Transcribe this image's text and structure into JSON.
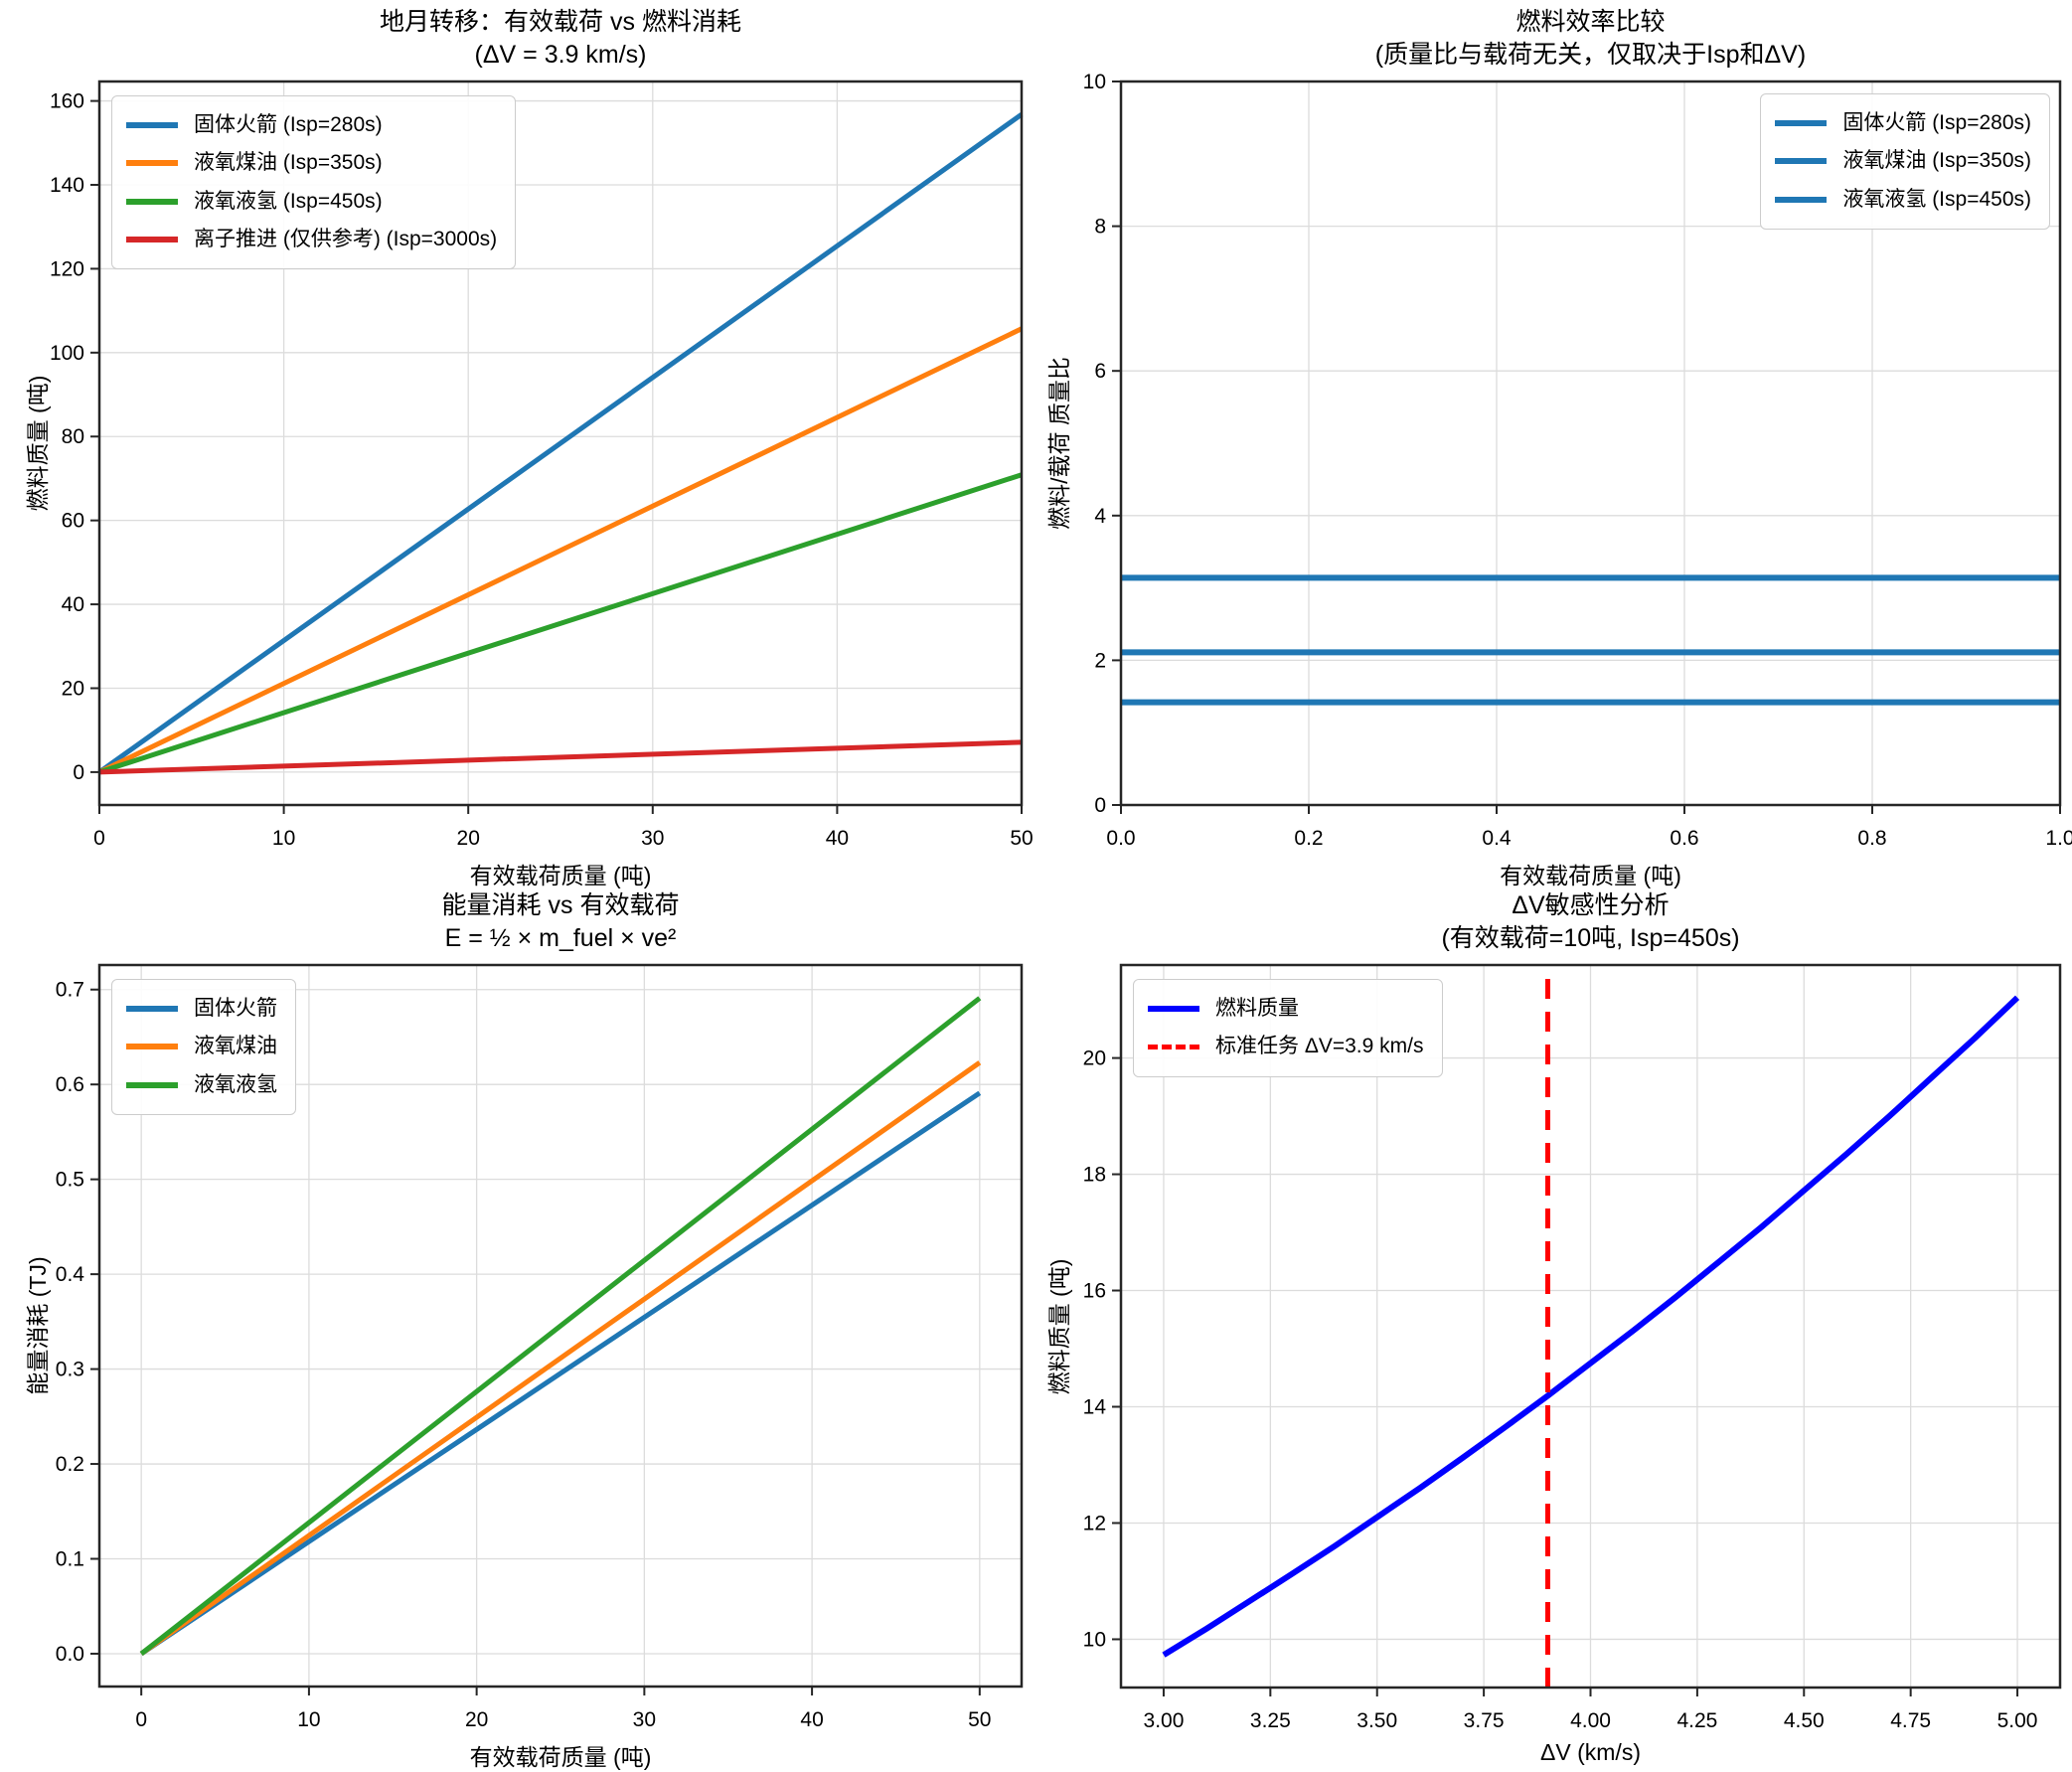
{
  "figure": {
    "background": "#ffffff",
    "grid_color": "#dcdcdc",
    "spine_color": "#262626"
  },
  "chart_data": [
    {
      "id": "payload-vs-fuel",
      "type": "line",
      "title": "地月转移：有效载荷 vs 燃料消耗",
      "subtitle": "(ΔV = 3.9 km/s)",
      "xlabel": "有效载荷质量 (吨)",
      "ylabel": "燃料质量 (吨)",
      "xlim": [
        0,
        50
      ],
      "ylim": [
        -7.84,
        164.64
      ],
      "grid": true,
      "legend_position": "top-left",
      "xticks": [
        {
          "v": 0,
          "label": "0"
        },
        {
          "v": 10,
          "label": "10"
        },
        {
          "v": 20,
          "label": "20"
        },
        {
          "v": 30,
          "label": "30"
        },
        {
          "v": 40,
          "label": "40"
        },
        {
          "v": 50,
          "label": "50"
        }
      ],
      "yticks": [
        {
          "v": 0,
          "label": "0"
        },
        {
          "v": 20,
          "label": "20"
        },
        {
          "v": 40,
          "label": "40"
        },
        {
          "v": 60,
          "label": "60"
        },
        {
          "v": 80,
          "label": "80"
        },
        {
          "v": 100,
          "label": "100"
        },
        {
          "v": 120,
          "label": "120"
        },
        {
          "v": 140,
          "label": "140"
        },
        {
          "v": 160,
          "label": "160"
        }
      ],
      "series": [
        {
          "name": "固体火箭 (Isp=280s)",
          "color": "#1f77b4",
          "lw": 5,
          "dash": false,
          "x": [
            0,
            50
          ],
          "y": [
            0,
            156.8
          ]
        },
        {
          "name": "液氧煤油 (Isp=350s)",
          "color": "#ff7f0e",
          "lw": 5,
          "dash": false,
          "x": [
            0,
            50
          ],
          "y": [
            0,
            105.7
          ]
        },
        {
          "name": "液氧液氢 (Isp=450s)",
          "color": "#2ca02c",
          "lw": 5,
          "dash": false,
          "x": [
            0,
            50
          ],
          "y": [
            0,
            70.9
          ]
        },
        {
          "name": "离子推进 (仅供参考) (Isp=3000s)",
          "color": "#d62728",
          "lw": 5,
          "dash": false,
          "x": [
            0,
            50
          ],
          "y": [
            0,
            7.1
          ]
        }
      ]
    },
    {
      "id": "fuel-efficiency-ratio",
      "type": "line",
      "title": "燃料效率比较",
      "subtitle": "(质量比与载荷无关，仅取决于Isp和ΔV)",
      "xlabel": "有效载荷质量 (吨)",
      "ylabel": "燃料/载荷 质量比",
      "xlim": [
        0,
        1
      ],
      "ylim": [
        0,
        10
      ],
      "grid": true,
      "legend_position": "top-right",
      "xticks": [
        {
          "v": 0,
          "label": "0.0"
        },
        {
          "v": 0.2,
          "label": "0.2"
        },
        {
          "v": 0.4,
          "label": "0.4"
        },
        {
          "v": 0.6,
          "label": "0.6"
        },
        {
          "v": 0.8,
          "label": "0.8"
        },
        {
          "v": 1.0,
          "label": "1.0"
        }
      ],
      "yticks": [
        {
          "v": 0,
          "label": "0"
        },
        {
          "v": 2,
          "label": "2"
        },
        {
          "v": 4,
          "label": "4"
        },
        {
          "v": 6,
          "label": "6"
        },
        {
          "v": 8,
          "label": "8"
        },
        {
          "v": 10,
          "label": "10"
        }
      ],
      "series": [
        {
          "name": "固体火箭 (Isp=280s)",
          "color": "#1f77b4",
          "lw": 6,
          "dash": false,
          "x": [
            0,
            1
          ],
          "y": [
            3.14,
            3.14
          ]
        },
        {
          "name": "液氧煤油 (Isp=350s)",
          "color": "#1f77b4",
          "lw": 6,
          "dash": false,
          "x": [
            0,
            1
          ],
          "y": [
            2.11,
            2.11
          ]
        },
        {
          "name": "液氧液氢 (Isp=450s)",
          "color": "#1f77b4",
          "lw": 6,
          "dash": false,
          "x": [
            0,
            1
          ],
          "y": [
            1.42,
            1.42
          ]
        }
      ]
    },
    {
      "id": "energy-vs-payload",
      "type": "line",
      "title": "能量消耗 vs 有效载荷",
      "subtitle": "E = ½ × m_fuel × ve²",
      "xlabel": "有效载荷质量 (吨)",
      "ylabel": "能量消耗 (TJ)",
      "xlim": [
        -2.5,
        52.5
      ],
      "ylim": [
        -0.0346,
        0.7259
      ],
      "grid": true,
      "legend_position": "top-left",
      "xticks": [
        {
          "v": 0,
          "label": "0"
        },
        {
          "v": 10,
          "label": "10"
        },
        {
          "v": 20,
          "label": "20"
        },
        {
          "v": 30,
          "label": "30"
        },
        {
          "v": 40,
          "label": "40"
        },
        {
          "v": 50,
          "label": "50"
        }
      ],
      "yticks": [
        {
          "v": 0,
          "label": "0.0"
        },
        {
          "v": 0.1,
          "label": "0.1"
        },
        {
          "v": 0.2,
          "label": "0.2"
        },
        {
          "v": 0.3,
          "label": "0.3"
        },
        {
          "v": 0.4,
          "label": "0.4"
        },
        {
          "v": 0.5,
          "label": "0.5"
        },
        {
          "v": 0.6,
          "label": "0.6"
        },
        {
          "v": 0.7,
          "label": "0.7"
        }
      ],
      "series": [
        {
          "name": "固体火箭",
          "color": "#1f77b4",
          "lw": 5,
          "dash": false,
          "x": [
            0,
            50
          ],
          "y": [
            0,
            0.591
          ]
        },
        {
          "name": "液氧煤油",
          "color": "#ff7f0e",
          "lw": 5,
          "dash": false,
          "x": [
            0,
            50
          ],
          "y": [
            0,
            0.623
          ]
        },
        {
          "name": "液氧液氢",
          "color": "#2ca02c",
          "lw": 5,
          "dash": false,
          "x": [
            0,
            50
          ],
          "y": [
            0,
            0.691
          ]
        }
      ]
    },
    {
      "id": "dv-sensitivity",
      "type": "line",
      "title": "ΔV敏感性分析",
      "subtitle": "(有效载荷=10吨, Isp=450s)",
      "xlabel": "ΔV (km/s)",
      "ylabel": "燃料质量 (吨)",
      "xlim": [
        2.9,
        5.1
      ],
      "ylim": [
        9.17,
        21.6
      ],
      "grid": true,
      "legend_position": "top-left",
      "xticks": [
        {
          "v": 3.0,
          "label": "3.00"
        },
        {
          "v": 3.25,
          "label": "3.25"
        },
        {
          "v": 3.5,
          "label": "3.50"
        },
        {
          "v": 3.75,
          "label": "3.75"
        },
        {
          "v": 4.0,
          "label": "4.00"
        },
        {
          "v": 4.25,
          "label": "4.25"
        },
        {
          "v": 4.5,
          "label": "4.50"
        },
        {
          "v": 4.75,
          "label": "4.75"
        },
        {
          "v": 5.0,
          "label": "5.00"
        }
      ],
      "yticks": [
        {
          "v": 10,
          "label": "10"
        },
        {
          "v": 12,
          "label": "12"
        },
        {
          "v": 14,
          "label": "14"
        },
        {
          "v": 16,
          "label": "16"
        },
        {
          "v": 18,
          "label": "18"
        },
        {
          "v": 20,
          "label": "20"
        }
      ],
      "series": [
        {
          "name": "燃料质量",
          "color": "#0000ff",
          "lw": 6,
          "dash": false,
          "x": [
            3.0,
            3.1,
            3.2,
            3.3,
            3.4,
            3.5,
            3.6,
            3.7,
            3.8,
            3.9,
            4.0,
            4.1,
            4.2,
            4.3,
            4.4,
            4.5,
            4.6,
            4.7,
            4.8,
            4.9,
            5.0
          ],
          "y": [
            9.73,
            10.18,
            10.65,
            11.12,
            11.6,
            12.1,
            12.6,
            13.12,
            13.65,
            14.19,
            14.75,
            15.31,
            15.89,
            16.49,
            17.09,
            17.72,
            18.35,
            19.0,
            19.67,
            20.34,
            21.04
          ]
        },
        {
          "name": "标准任务 ΔV=3.9 km/s",
          "color": "#ff0000",
          "lw": 5,
          "dash": true,
          "x": [
            3.9,
            3.9
          ],
          "y": [
            9.17,
            21.6
          ]
        }
      ]
    }
  ]
}
